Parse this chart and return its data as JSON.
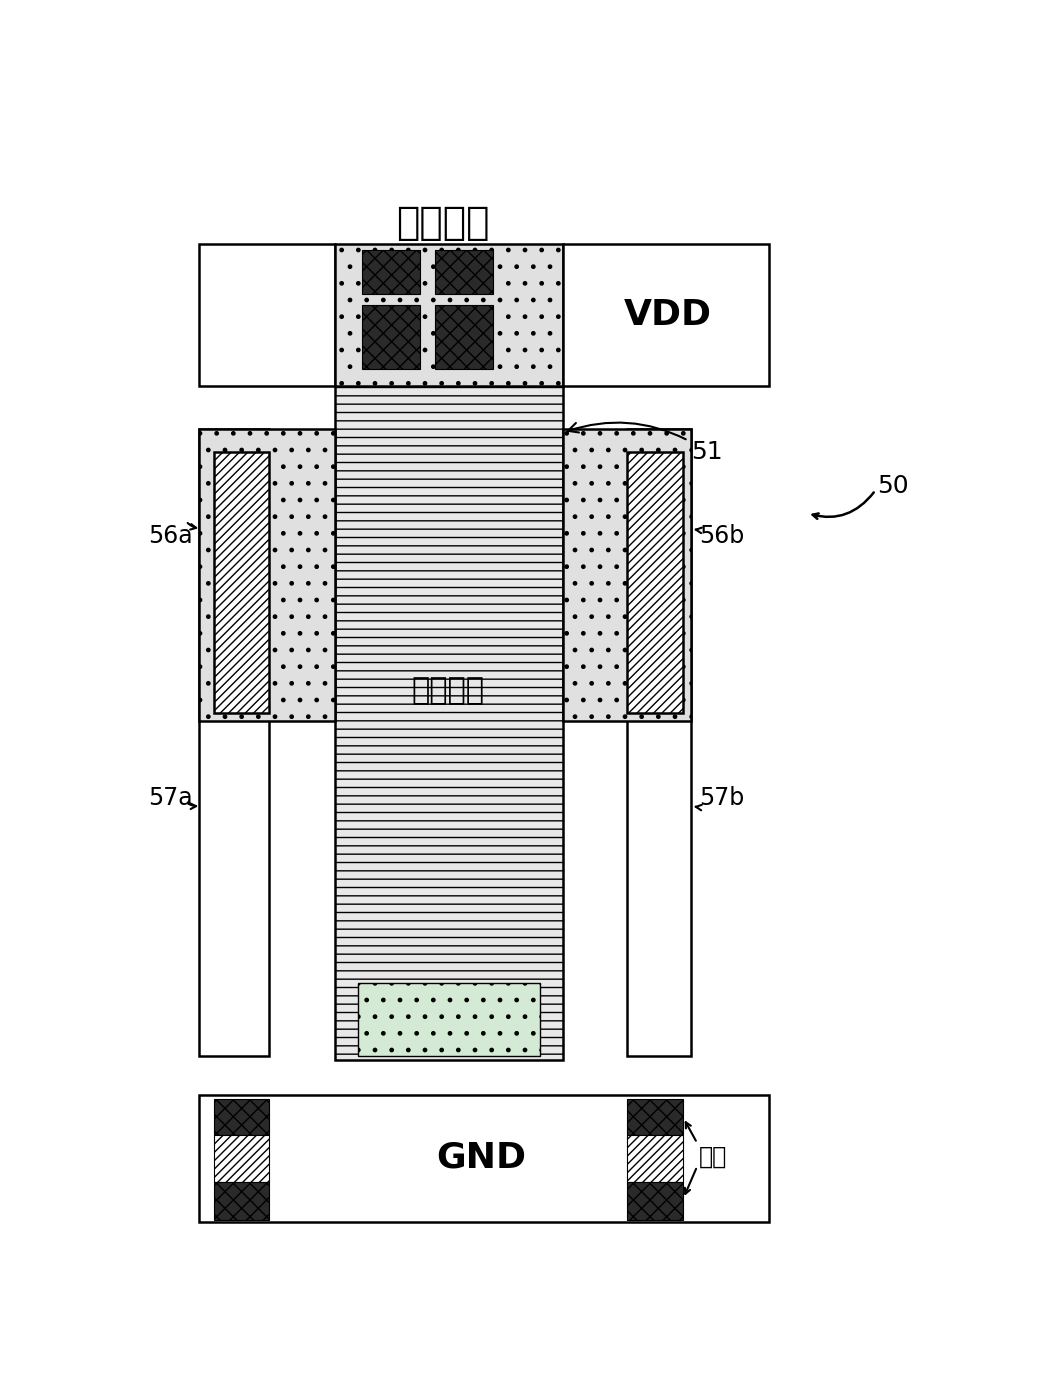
{
  "title": "现有技术",
  "bg_color": "#ffffff",
  "label_vdd": "VDD",
  "label_gnd": "GND",
  "label_poly": "多晶硅栅",
  "label_via": "通孔",
  "label_50": "50",
  "label_51": "51",
  "label_56a": "56a",
  "label_56b": "56b",
  "label_57a": "57a",
  "label_57b": "57b",
  "dot_color": "#e0e0e0",
  "hatch_color": "#ffffff",
  "contact_color": "#2a2a2a",
  "dash_color": "#e8e8e8",
  "silicon_color": "#d4ead4"
}
